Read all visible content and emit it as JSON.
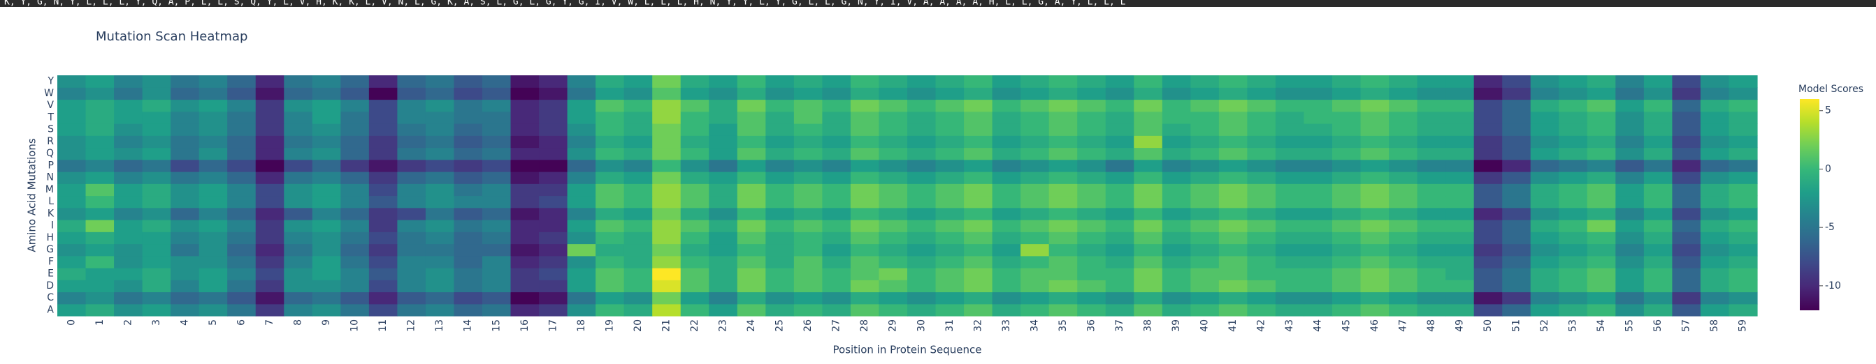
{
  "sequence_banner": "K, Y, G, N, Y, L, L, L, Y, Q, A, P, L, L, S, Q, Y, L, V, H, K, K, L, V, N, L, G, K, A, S, L, G, L, G, Y, G, I, V, W, L, L, L, H, N, Y, Y, L, Y, G, L, L, G, N, Y, I, V, A, A, A, A, H, L, L, G, A, Y, L, L, L",
  "chart_data": {
    "type": "heatmap",
    "title": "Mutation Scan Heatmap",
    "xlabel": "Position in Protein Sequence",
    "ylabel": "Amino Acid Mutations",
    "colorbar_title": "Model Scores",
    "x": [
      0,
      1,
      2,
      3,
      4,
      5,
      6,
      7,
      8,
      9,
      10,
      11,
      12,
      13,
      14,
      15,
      16,
      17,
      18,
      19,
      20,
      21,
      22,
      23,
      24,
      25,
      26,
      27,
      28,
      29,
      30,
      31,
      32,
      33,
      34,
      35,
      36,
      37,
      38,
      39,
      40,
      41,
      42,
      43,
      44,
      45,
      46,
      47,
      48,
      49,
      50,
      51,
      52,
      53,
      54,
      55,
      56,
      57,
      58,
      59
    ],
    "y": [
      "A",
      "C",
      "D",
      "E",
      "F",
      "G",
      "H",
      "I",
      "K",
      "L",
      "M",
      "N",
      "P",
      "Q",
      "R",
      "S",
      "T",
      "V",
      "W",
      "Y"
    ],
    "z": [
      [
        -2,
        -1,
        -3,
        -2,
        -4,
        -3,
        -5,
        -9,
        -4,
        -3,
        -5,
        -8,
        -5,
        -4,
        -6,
        -5,
        -10,
        -9,
        -3,
        0,
        -1,
        4,
        0,
        -2,
        1,
        -1,
        0,
        -1,
        1,
        0,
        -1,
        0,
        1,
        -1,
        0,
        1,
        0,
        -1,
        1,
        -1,
        0,
        1,
        0,
        -1,
        -1,
        0,
        1,
        0,
        -1,
        -1,
        -8,
        -6,
        -2,
        -1,
        0,
        -3,
        -1,
        -7,
        -2,
        -1
      ],
      [
        -4,
        -3,
        -5,
        -4,
        -6,
        -5,
        -7,
        -11,
        -6,
        -5,
        -7,
        -10,
        -7,
        -6,
        -8,
        -7,
        -12,
        -11,
        -5,
        -2,
        -3,
        2,
        -2,
        -4,
        -1,
        -3,
        -2,
        -3,
        -1,
        -2,
        -3,
        -2,
        -1,
        -3,
        -2,
        -1,
        -2,
        -3,
        -1,
        -3,
        -2,
        -1,
        -2,
        -3,
        -3,
        -2,
        -1,
        -2,
        -3,
        -3,
        -11,
        -9,
        -4,
        -3,
        -2,
        -5,
        -3,
        -9,
        -4,
        -3
      ],
      [
        -2,
        -2,
        -3,
        -1,
        -4,
        -2,
        -5,
        -9,
        -3,
        -3,
        -4,
        -8,
        -4,
        -3,
        -5,
        -4,
        -9,
        -9,
        -2,
        1,
        0,
        5,
        1,
        -1,
        2,
        0,
        1,
        0,
        2,
        1,
        0,
        1,
        2,
        0,
        1,
        2,
        1,
        0,
        2,
        0,
        1,
        2,
        1,
        0,
        0,
        1,
        2,
        1,
        0,
        0,
        -7,
        -5,
        -1,
        0,
        1,
        -2,
        0,
        -6,
        -1,
        0
      ],
      [
        -1,
        -2,
        -2,
        -1,
        -3,
        -2,
        -4,
        -8,
        -3,
        -2,
        -4,
        -7,
        -4,
        -3,
        -5,
        -4,
        -9,
        -8,
        -2,
        1,
        0,
        6,
        1,
        -1,
        2,
        0,
        1,
        0,
        1,
        2,
        0,
        1,
        2,
        0,
        1,
        1,
        0,
        0,
        2,
        0,
        1,
        1,
        0,
        0,
        0,
        1,
        2,
        1,
        0,
        -1,
        -7,
        -5,
        -1,
        0,
        1,
        -2,
        0,
        -6,
        -1,
        0
      ],
      [
        -2,
        0,
        -3,
        -2,
        -3,
        -3,
        -5,
        -9,
        -4,
        -2,
        -5,
        -8,
        -4,
        -4,
        -6,
        -4,
        -10,
        -9,
        -3,
        0,
        -1,
        3,
        0,
        -1,
        1,
        -1,
        1,
        -1,
        1,
        0,
        -1,
        0,
        1,
        -1,
        0,
        1,
        0,
        -1,
        1,
        -1,
        0,
        1,
        0,
        -1,
        -1,
        0,
        1,
        0,
        -1,
        -1,
        -8,
        -6,
        -2,
        -1,
        0,
        -3,
        -1,
        -7,
        -2,
        -1
      ],
      [
        -3,
        -2,
        -3,
        -2,
        -5,
        -3,
        -6,
        -10,
        -5,
        -3,
        -6,
        -9,
        -5,
        -5,
        -6,
        -6,
        -11,
        -10,
        2,
        -1,
        -1,
        2,
        -1,
        -2,
        0,
        -1,
        0,
        -2,
        0,
        -1,
        -2,
        -1,
        0,
        -2,
        3,
        0,
        -1,
        -2,
        0,
        -2,
        -1,
        0,
        -1,
        -2,
        -2,
        -1,
        0,
        -1,
        -2,
        -2,
        -9,
        -7,
        -3,
        -2,
        -1,
        -4,
        -2,
        -8,
        -3,
        -2
      ],
      [
        -2,
        -1,
        -2,
        -2,
        -4,
        -3,
        -5,
        -9,
        -4,
        -3,
        -5,
        -8,
        -5,
        -4,
        -6,
        -5,
        -10,
        -9,
        -3,
        0,
        -1,
        3,
        0,
        -2,
        1,
        -1,
        0,
        -1,
        1,
        0,
        -1,
        0,
        1,
        -1,
        0,
        1,
        0,
        -1,
        1,
        -1,
        0,
        1,
        0,
        -1,
        -1,
        0,
        1,
        0,
        -1,
        -1,
        -8,
        -6,
        -2,
        -1,
        0,
        -3,
        -1,
        -7,
        -2,
        -1
      ],
      [
        -1,
        2,
        -2,
        -1,
        -3,
        -2,
        -4,
        -9,
        -3,
        -2,
        -4,
        -9,
        -4,
        -3,
        -5,
        -4,
        -10,
        -10,
        -2,
        1,
        0,
        3,
        1,
        -1,
        2,
        0,
        1,
        0,
        2,
        1,
        0,
        1,
        2,
        0,
        1,
        2,
        1,
        0,
        2,
        0,
        1,
        2,
        1,
        0,
        0,
        1,
        2,
        1,
        0,
        0,
        -8,
        -6,
        -1,
        0,
        2,
        -2,
        0,
        -6,
        -1,
        0
      ],
      [
        -3,
        -2,
        -4,
        -3,
        -6,
        -4,
        -6,
        -10,
        -7,
        -4,
        -6,
        -9,
        -8,
        -5,
        -7,
        -6,
        -11,
        -10,
        -4,
        -1,
        -2,
        2,
        -1,
        -3,
        0,
        -2,
        -1,
        -2,
        0,
        -1,
        -2,
        -1,
        0,
        -2,
        -1,
        0,
        -1,
        -2,
        0,
        -2,
        -1,
        0,
        -1,
        -2,
        -2,
        -1,
        0,
        -1,
        -2,
        -2,
        -10,
        -8,
        -3,
        -2,
        -1,
        -4,
        -2,
        -8,
        -3,
        -2
      ],
      [
        -2,
        0,
        -2,
        -1,
        -3,
        -2,
        -4,
        -8,
        -3,
        -2,
        -4,
        -7,
        -4,
        -3,
        -4,
        -4,
        -9,
        -8,
        -2,
        1,
        0,
        3,
        1,
        -1,
        2,
        0,
        1,
        0,
        2,
        1,
        0,
        1,
        2,
        0,
        1,
        2,
        1,
        0,
        2,
        0,
        1,
        2,
        1,
        0,
        0,
        1,
        2,
        1,
        0,
        0,
        -7,
        -5,
        -1,
        0,
        1,
        -2,
        0,
        -6,
        -1,
        0
      ],
      [
        -2,
        1,
        -2,
        -1,
        -3,
        -2,
        -4,
        -8,
        -3,
        -2,
        -4,
        -8,
        -4,
        -3,
        -5,
        -4,
        -9,
        -9,
        -2,
        1,
        0,
        3,
        1,
        -1,
        2,
        0,
        1,
        0,
        2,
        1,
        0,
        1,
        2,
        0,
        1,
        2,
        1,
        0,
        2,
        0,
        1,
        2,
        1,
        0,
        0,
        1,
        2,
        1,
        0,
        0,
        -7,
        -5,
        -1,
        0,
        1,
        -2,
        0,
        -6,
        -1,
        0
      ],
      [
        -3,
        -2,
        -4,
        -3,
        -5,
        -4,
        -6,
        -10,
        -5,
        -4,
        -6,
        -9,
        -6,
        -5,
        -7,
        -6,
        -11,
        -10,
        -4,
        -1,
        -2,
        2,
        -1,
        -2,
        0,
        -2,
        -1,
        -2,
        0,
        -1,
        -2,
        -1,
        0,
        -2,
        -1,
        0,
        -1,
        -2,
        0,
        -2,
        -1,
        0,
        -1,
        -2,
        -2,
        -1,
        0,
        -1,
        -2,
        -2,
        -9,
        -7,
        -3,
        -2,
        -1,
        -4,
        -2,
        -8,
        -3,
        -2
      ],
      [
        -5,
        -4,
        -6,
        -5,
        -8,
        -6,
        -8,
        -12,
        -8,
        -6,
        -9,
        -11,
        -9,
        -8,
        -9,
        -8,
        -12,
        -12,
        -6,
        -3,
        -4,
        0,
        -3,
        -5,
        -2,
        -4,
        -3,
        -4,
        -2,
        -3,
        -4,
        -3,
        -2,
        -4,
        -3,
        -2,
        -3,
        -5,
        -2,
        -4,
        -3,
        -2,
        -3,
        -4,
        -4,
        -3,
        -2,
        -3,
        -4,
        -4,
        -12,
        -10,
        -6,
        -5,
        -4,
        -7,
        -5,
        -10,
        -6,
        -5
      ],
      [
        -3,
        -2,
        -3,
        -2,
        -5,
        -3,
        -6,
        -10,
        -4,
        -3,
        -6,
        -9,
        -5,
        -4,
        -6,
        -5,
        -10,
        -10,
        -3,
        0,
        -1,
        2,
        0,
        -2,
        1,
        -1,
        0,
        -1,
        1,
        0,
        -1,
        0,
        1,
        -1,
        0,
        1,
        0,
        -1,
        1,
        -1,
        0,
        1,
        0,
        -1,
        -1,
        0,
        1,
        0,
        -1,
        -1,
        -9,
        -7,
        -2,
        -1,
        0,
        -3,
        -1,
        -7,
        -2,
        -1
      ],
      [
        -3,
        -2,
        -4,
        -3,
        -5,
        -4,
        -6,
        -10,
        -5,
        -4,
        -6,
        -9,
        -6,
        -5,
        -7,
        -6,
        -11,
        -10,
        -4,
        -1,
        -2,
        2,
        -1,
        -2,
        0,
        -2,
        -1,
        -2,
        0,
        -1,
        -2,
        -1,
        0,
        -2,
        -1,
        0,
        -1,
        -2,
        3,
        -2,
        -1,
        0,
        -1,
        -2,
        -2,
        -1,
        0,
        -1,
        -2,
        -2,
        -9,
        -7,
        -3,
        -2,
        -1,
        -4,
        -2,
        -8,
        -3,
        -2
      ],
      [
        -2,
        -1,
        -3,
        -2,
        -4,
        -3,
        -5,
        -9,
        -4,
        -3,
        -5,
        -8,
        -5,
        -4,
        -6,
        -5,
        -10,
        -9,
        -3,
        0,
        -1,
        2,
        0,
        -2,
        1,
        -1,
        0,
        -1,
        1,
        0,
        -1,
        0,
        1,
        -1,
        0,
        1,
        0,
        -1,
        1,
        -1,
        0,
        1,
        0,
        -1,
        -1,
        0,
        1,
        0,
        -1,
        -1,
        -8,
        -6,
        -2,
        -1,
        0,
        -3,
        -1,
        -7,
        -2,
        -1
      ],
      [
        -2,
        -1,
        -2,
        -2,
        -4,
        -3,
        -5,
        -9,
        -4,
        -2,
        -5,
        -8,
        -4,
        -4,
        -5,
        -5,
        -10,
        -9,
        -2,
        0,
        -1,
        3,
        0,
        -1,
        1,
        -1,
        1,
        -1,
        1,
        0,
        -1,
        0,
        1,
        -1,
        0,
        1,
        0,
        -1,
        1,
        0,
        0,
        1,
        0,
        -1,
        0,
        0,
        1,
        0,
        -1,
        -1,
        -8,
        -6,
        -2,
        -1,
        0,
        -3,
        -1,
        -7,
        -2,
        -1
      ],
      [
        -2,
        -1,
        -2,
        -1,
        -3,
        -2,
        -4,
        -9,
        -3,
        -2,
        -4,
        -8,
        -4,
        -3,
        -5,
        -4,
        -10,
        -9,
        -2,
        1,
        0,
        3,
        1,
        -1,
        2,
        0,
        1,
        0,
        2,
        1,
        0,
        1,
        2,
        0,
        1,
        2,
        1,
        0,
        2,
        0,
        1,
        2,
        1,
        0,
        0,
        1,
        2,
        1,
        0,
        0,
        -8,
        -6,
        -1,
        0,
        1,
        -2,
        0,
        -6,
        -1,
        0
      ],
      [
        -4,
        -3,
        -5,
        -3,
        -6,
        -5,
        -7,
        -11,
        -6,
        -5,
        -7,
        -12,
        -7,
        -6,
        -8,
        -7,
        -12,
        -11,
        -5,
        -2,
        -3,
        1,
        -2,
        -3,
        -1,
        -3,
        -2,
        -3,
        -1,
        -2,
        -3,
        -2,
        -1,
        -3,
        -2,
        -1,
        -2,
        -3,
        -1,
        -3,
        -2,
        -1,
        -2,
        -3,
        -3,
        -2,
        -1,
        -2,
        -3,
        -3,
        -11,
        -9,
        -4,
        -3,
        -2,
        -5,
        -3,
        -9,
        -4,
        -3
      ],
      [
        -3,
        -2,
        -4,
        -3,
        -5,
        -4,
        -6,
        -10,
        -5,
        -4,
        -6,
        -10,
        -6,
        -5,
        -7,
        -6,
        -11,
        -10,
        -4,
        -1,
        -2,
        2,
        -1,
        -2,
        0,
        -2,
        -1,
        -2,
        0,
        -1,
        -2,
        -1,
        0,
        -2,
        -1,
        0,
        -1,
        -2,
        0,
        -2,
        -1,
        0,
        -1,
        -2,
        -2,
        -1,
        0,
        -1,
        -2,
        -2,
        -10,
        -8,
        -3,
        -2,
        -1,
        -4,
        -2,
        -8,
        -3,
        -2
      ]
    ],
    "zlim": [
      -12.1,
      6
    ],
    "zticks": [
      5,
      0,
      -5,
      -10
    ],
    "colorscale": [
      "#440154",
      "#482878",
      "#3e4989",
      "#31688e",
      "#26828e",
      "#1f9e89",
      "#35b779",
      "#6ece58",
      "#b5de2b",
      "#fde725"
    ]
  }
}
